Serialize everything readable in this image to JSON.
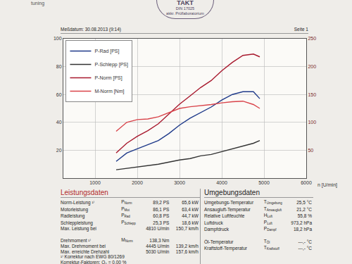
{
  "header": {
    "brand": "tuning",
    "date": "Meßdatum: 30.08.2013 (9:14)",
    "page": "Seite 1",
    "stamp": [
      "TAKT",
      "DIN 17025",
      "akkr. Prüflaboratorium"
    ]
  },
  "chart_data": {
    "type": "line",
    "x": [
      1500,
      1750,
      2000,
      2250,
      2500,
      2750,
      3000,
      3250,
      3500,
      3750,
      4000,
      4250,
      4500,
      4750,
      4900
    ],
    "series": [
      {
        "name": "P-Rad [PS]",
        "color": "#1f3a8a",
        "values": [
          12,
          18,
          21,
          24,
          27,
          32,
          38,
          43,
          47,
          51,
          56,
          60,
          62,
          62,
          57
        ]
      },
      {
        "name": "P-Schlepp [PS]",
        "color": "#333333",
        "values": [
          6,
          7,
          8,
          9,
          10,
          11.5,
          13,
          14,
          16,
          17,
          19,
          21,
          23,
          25,
          27
        ]
      },
      {
        "name": "P-Norm [PS]",
        "color": "#a8192e",
        "values": [
          18,
          25,
          30,
          34,
          39,
          46,
          53,
          59,
          65,
          70,
          77,
          83,
          88,
          89,
          87
        ]
      },
      {
        "name": "M-Norm [Nm]",
        "color": "#d9434a",
        "axis": "y2",
        "values": [
          84,
          100,
          105,
          106,
          110,
          118,
          125,
          128,
          130,
          132,
          135,
          137,
          138,
          132,
          125
        ]
      }
    ],
    "xlabel": "n [U/min]",
    "xlim": [
      250,
      6000
    ],
    "xticks": [
      1000,
      2000,
      3000,
      4000,
      5000,
      6000
    ],
    "ylim": [
      0,
      100
    ],
    "yticks": [
      20,
      40,
      60,
      80,
      100
    ],
    "y2lim": [
      0,
      250
    ],
    "y2ticks": [
      50,
      100,
      150,
      200,
      250
    ],
    "grid": true,
    "legend": "upper left"
  },
  "tables": {
    "leistungsdaten": {
      "title": "Leistungsdaten",
      "rows": [
        [
          "Norm-Leistung ¹⁾",
          {
            "main": "P",
            "sub": "Norm"
          },
          "89,2 PS",
          "65,6 kW"
        ],
        [
          "Motorleistung",
          {
            "main": "P",
            "sub": "Mot"
          },
          "86,1 PS",
          "63,4 kW"
        ],
        [
          "Radleistung",
          {
            "main": "P",
            "sub": "Rad"
          },
          "60,8 PS",
          "44,7 kW"
        ],
        [
          "Schleppleistung",
          {
            "main": "P",
            "sub": "Schlepp"
          },
          "25,3 PS",
          "18,6 kW"
        ],
        [
          "Max. Leistung bei",
          null,
          "4810 U/min",
          "150,7 km/h"
        ],
        [
          null,
          null,
          null,
          null
        ],
        [
          "Drehmoment ¹⁾",
          {
            "main": "M",
            "sub": "Norm"
          },
          "138,3 Nm",
          null
        ],
        [
          "Max. Drehmoment bei",
          null,
          "4445 U/min",
          "139,2 km/h"
        ],
        [
          "Max. erreichte Drehzahl",
          null,
          "5030 U/min",
          "157,6 km/h"
        ],
        [
          "¹⁾ Korrektur nach EWG 80/1269"
        ],
        [
          "Korrektur-Faktoren: Q₀ = 0,00 %"
        ]
      ]
    },
    "umgebungsdaten": {
      "title": "Umgebungsdaten",
      "rows": [
        [
          "Umgebungs-Temperatur",
          {
            "main": "T",
            "sub": "Umgebung"
          },
          "25,5 °C"
        ],
        [
          "Ansaugluft-Temperatur",
          {
            "main": "T",
            "sub": "Ansaugluft"
          },
          "21,2 °C"
        ],
        [
          "Relative Luftfeuchte",
          {
            "main": "H",
            "sub": "Luft"
          },
          "55,8 %"
        ],
        [
          "Luftdruck",
          {
            "main": "P",
            "sub": "Luft"
          },
          "973,2 hPa"
        ],
        [
          "Dampfdruck",
          {
            "main": "P",
            "sub": "Dampf"
          },
          "18,2 hPa"
        ],
        [
          null,
          null,
          null
        ],
        [
          "Öl-Temperatur",
          {
            "main": "T",
            "sub": "Öl"
          },
          "---,- °C"
        ],
        [
          "Kraftstoff-Temperatur",
          {
            "main": "T",
            "sub": "Kraftstoff"
          },
          "---,- °C"
        ]
      ]
    }
  }
}
